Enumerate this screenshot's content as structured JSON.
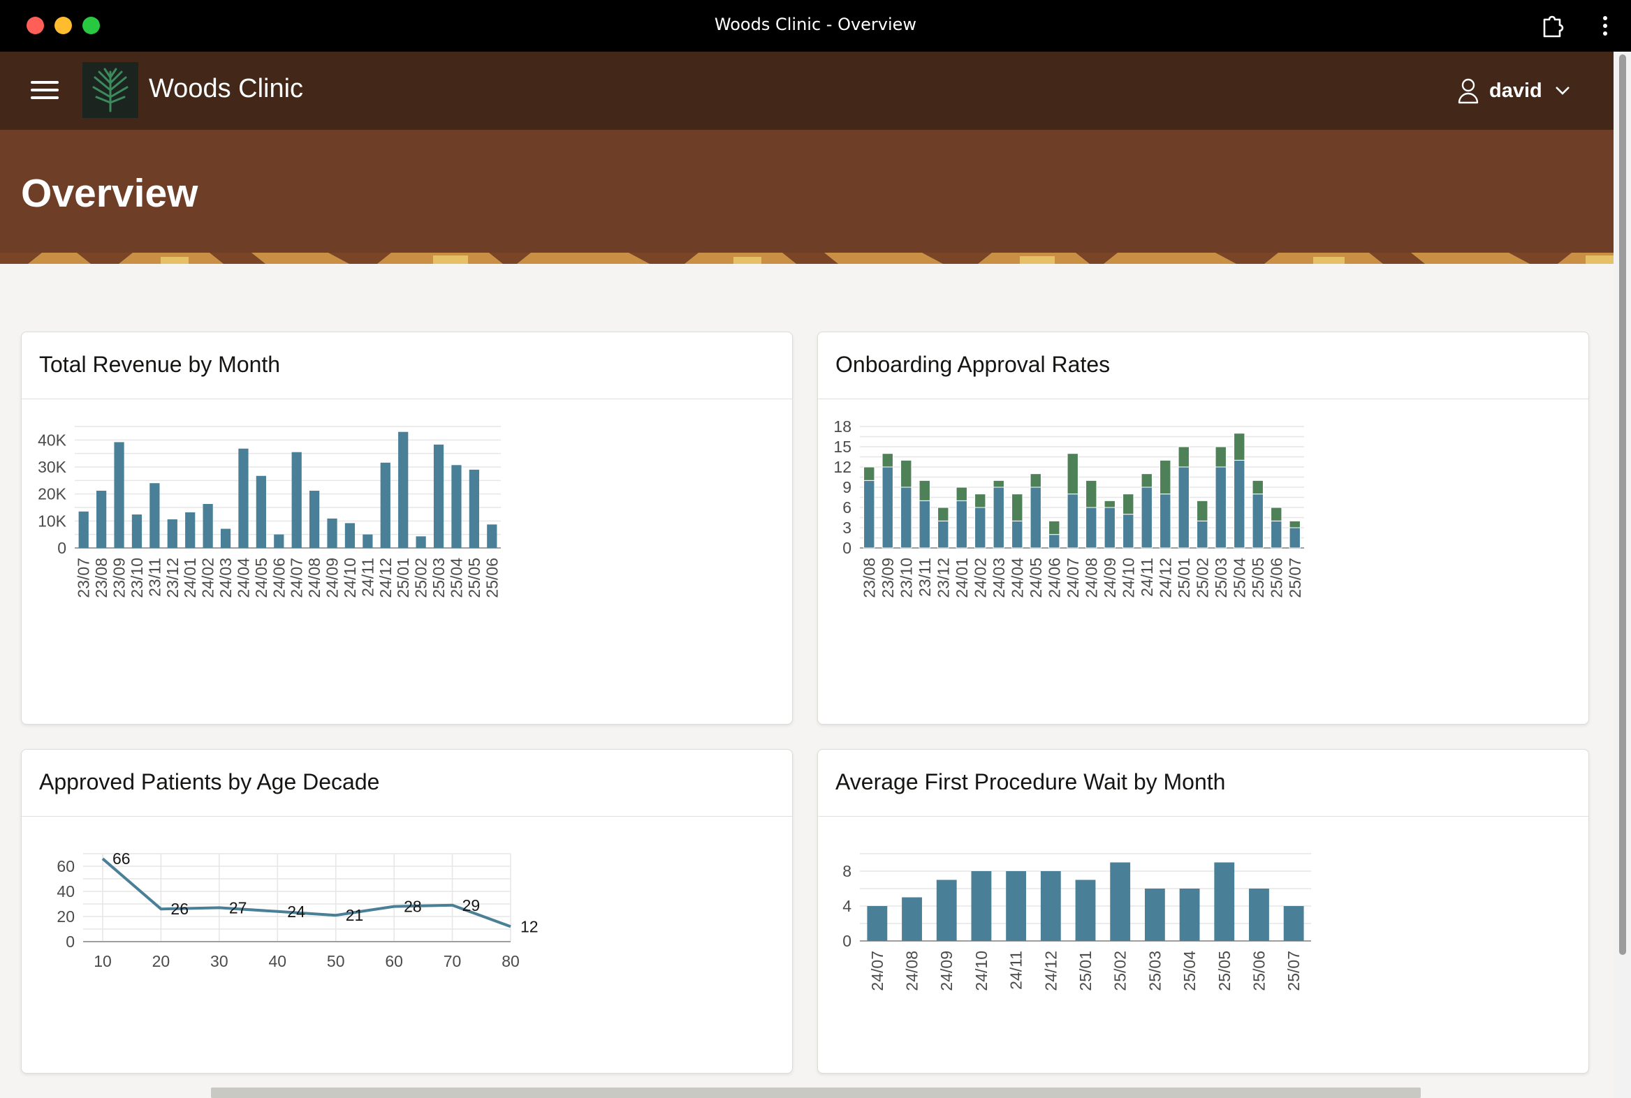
{
  "window": {
    "title": "Woods Clinic - Overview"
  },
  "app": {
    "name": "Woods Clinic",
    "user": "david"
  },
  "page": {
    "title": "Overview"
  },
  "colors": {
    "bar": "#4a7f98",
    "bar_secondary": "#4e8158",
    "line": "#4a7f98",
    "header": "#432718",
    "hero": "#6e3e27"
  },
  "cards": [
    {
      "title": "Total Revenue by Month"
    },
    {
      "title": "Onboarding Approval Rates"
    },
    {
      "title": "Approved Patients by Age Decade"
    },
    {
      "title": "Average First Procedure Wait by Month"
    }
  ],
  "chart_data": [
    {
      "type": "bar",
      "title": "Total Revenue by Month",
      "categories": [
        "23/07",
        "23/08",
        "23/09",
        "23/10",
        "23/11",
        "23/12",
        "24/01",
        "24/02",
        "24/03",
        "24/04",
        "24/05",
        "24/06",
        "24/07",
        "24/08",
        "24/09",
        "24/10",
        "24/11",
        "24/12",
        "25/01",
        "25/02",
        "25/03",
        "25/04",
        "25/05",
        "25/06"
      ],
      "values": [
        13500,
        21200,
        39200,
        12400,
        24000,
        10600,
        13200,
        16300,
        7100,
        36800,
        26700,
        5000,
        35500,
        21200,
        10900,
        9200,
        5000,
        31600,
        43000,
        4300,
        38300,
        30700,
        29000,
        8700
      ],
      "ylim": [
        0,
        45000
      ],
      "yticks": [
        0,
        10000,
        20000,
        30000,
        40000
      ],
      "ytick_labels": [
        "0",
        "10K",
        "20K",
        "30K",
        "40K"
      ],
      "grid": true
    },
    {
      "type": "bar",
      "stacked": true,
      "title": "Onboarding Approval Rates",
      "categories": [
        "23/08",
        "23/09",
        "23/10",
        "23/11",
        "23/12",
        "24/01",
        "24/02",
        "24/03",
        "24/04",
        "24/05",
        "24/06",
        "24/07",
        "24/08",
        "24/09",
        "24/10",
        "24/11",
        "24/12",
        "25/01",
        "25/02",
        "25/03",
        "25/04",
        "25/05",
        "25/06",
        "25/07"
      ],
      "series": [
        {
          "values": [
            10,
            12,
            9,
            7,
            4,
            7,
            6,
            9,
            4,
            9,
            2,
            8,
            6,
            6,
            5,
            9,
            8,
            12,
            4,
            12,
            13,
            8,
            4,
            3
          ]
        },
        {
          "values": [
            2,
            2,
            4,
            3,
            2,
            2,
            2,
            1,
            4,
            2,
            2,
            6,
            4,
            1,
            3,
            2,
            5,
            3,
            3,
            3,
            4,
            2,
            2,
            1
          ]
        }
      ],
      "ylim": [
        0,
        18
      ],
      "yticks": [
        0,
        3,
        6,
        9,
        12,
        15,
        18
      ],
      "grid": true
    },
    {
      "type": "line",
      "title": "Approved Patients by Age Decade",
      "x": [
        10,
        20,
        30,
        40,
        50,
        60,
        70,
        80
      ],
      "values": [
        66,
        26,
        27,
        24,
        21,
        28,
        29,
        12
      ],
      "xlim": [
        10,
        80
      ],
      "ylim": [
        0,
        70
      ],
      "yticks": [
        0,
        20,
        40,
        60
      ],
      "grid": true
    },
    {
      "type": "bar",
      "title": "Average First Procedure Wait by Month",
      "categories": [
        "24/07",
        "24/08",
        "24/09",
        "24/10",
        "24/11",
        "24/12",
        "25/01",
        "25/02",
        "25/03",
        "25/04",
        "25/05",
        "25/06",
        "25/07"
      ],
      "values": [
        4,
        5,
        7,
        8,
        8,
        8,
        7,
        9,
        6,
        6,
        9,
        6,
        4
      ],
      "ylim": [
        0,
        10
      ],
      "yticks": [
        0,
        4,
        8
      ],
      "grid": true
    }
  ]
}
